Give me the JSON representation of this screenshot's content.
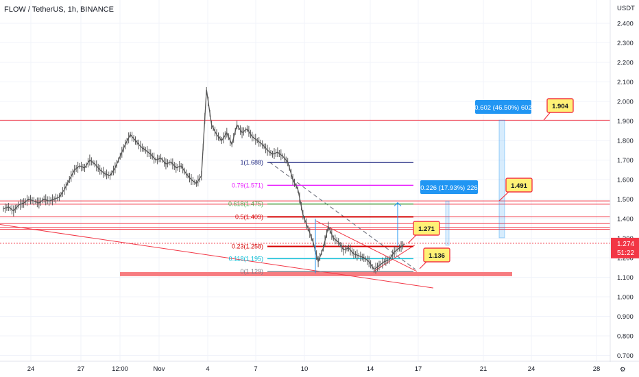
{
  "header": {
    "title": "FLOW / TetherUS, 1h, BINANCE",
    "currency": "USDT"
  },
  "price_tag": {
    "price": "1.274",
    "countdown": "51:22",
    "color": "#f23645"
  },
  "colors": {
    "candle": "#555555",
    "hline": "#f23645",
    "trend": "#f23645",
    "dashed": "#787b86",
    "fib_1": "#1a237e",
    "fib_079": "#e91eff",
    "fib_0618": "#4caf50",
    "fib_05": "#d50000",
    "fib_023": "#d50000",
    "fib_0118": "#00bcd4",
    "fib_0": "#787b86",
    "note_bg": "#fff176",
    "note_border": "#f23645",
    "measure": "#2196f3"
  },
  "chart_data": {
    "type": "line",
    "title": "FLOW / TetherUS, 1h, BINANCE",
    "ylabel": "USDT",
    "ylim": [
      0.68,
      2.47
    ],
    "y_ticks": [
      "2.400",
      "2.300",
      "2.200",
      "2.100",
      "2.000",
      "1.900",
      "1.800",
      "1.700",
      "1.600",
      "1.500",
      "1.400",
      "1.300",
      "1.200",
      "1.100",
      "1.000",
      "0.900",
      "0.800",
      "0.700"
    ],
    "x_ticks": [
      "24",
      "27",
      "12:00",
      "Nov",
      "4",
      "7",
      "10",
      "14",
      "17",
      "21",
      "24",
      "28"
    ],
    "series": [
      {
        "values": [
          1.45,
          1.46,
          1.44,
          1.47,
          1.48,
          1.5,
          1.49,
          1.48,
          1.5,
          1.49,
          1.5,
          1.51,
          1.55,
          1.6,
          1.65,
          1.67,
          1.66,
          1.7,
          1.68,
          1.65,
          1.63,
          1.62,
          1.66,
          1.72,
          1.78,
          1.83,
          1.8,
          1.77,
          1.75,
          1.73,
          1.7,
          1.71,
          1.68,
          1.69,
          1.66,
          1.67,
          1.63,
          1.6,
          1.58,
          1.62,
          2.06,
          1.88,
          1.83,
          1.8,
          1.84,
          1.78,
          1.88,
          1.84,
          1.86,
          1.82,
          1.8,
          1.78,
          1.75,
          1.73,
          1.74,
          1.72,
          1.69,
          1.6,
          1.55,
          1.42,
          1.35,
          1.28,
          1.18,
          1.25,
          1.36,
          1.3,
          1.28,
          1.24,
          1.25,
          1.22,
          1.21,
          1.2,
          1.18,
          1.14,
          1.16,
          1.18,
          1.19,
          1.23,
          1.25,
          1.27
        ]
      }
    ],
    "horizontal_lines": [
      1.904,
      1.491,
      1.474,
      1.41,
      1.375,
      1.355,
      1.345,
      1.274
    ],
    "support_zone": 1.116,
    "fib_levels": [
      {
        "label": "1(1.688)",
        "value": 1.688
      },
      {
        "label": "0.79(1.571)",
        "value": 1.571
      },
      {
        "label": "0.618(1.475)",
        "value": 1.475
      },
      {
        "label": "0.5(1.409)",
        "value": 1.409
      },
      {
        "label": "0.23(1.258)",
        "value": 1.258
      },
      {
        "label": "0.118(1.195)",
        "value": 1.195
      },
      {
        "label": "0(1.129)",
        "value": 1.129
      }
    ],
    "annotations": [
      "1.904",
      "1.491",
      "1.271",
      "1.136"
    ],
    "measurements": [
      "0.602 (46.50%) 602",
      "0.226 (17.93%) 226"
    ]
  }
}
